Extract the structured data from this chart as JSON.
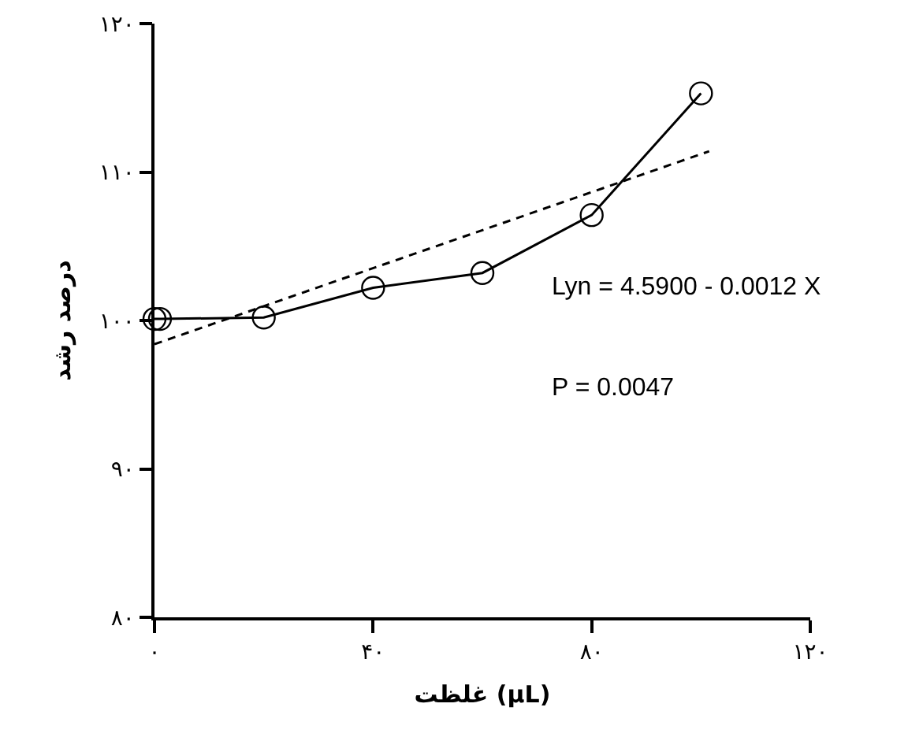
{
  "chart_data": {
    "type": "line",
    "xlabel": "غلظت (µL)",
    "ylabel": "درصد رشد",
    "xlim": [
      0,
      120
    ],
    "xticks": [
      {
        "value": 0,
        "label": "۰"
      },
      {
        "value": 40,
        "label": "۴۰"
      },
      {
        "value": 80,
        "label": "۸۰"
      },
      {
        "value": 120,
        "label": "۱۲۰"
      }
    ],
    "ylim": [
      80,
      120
    ],
    "yticks": [
      {
        "value": 80,
        "label": "۸۰"
      },
      {
        "value": 90,
        "label": "۹۰"
      },
      {
        "value": 100,
        "label": "۱۰۰"
      },
      {
        "value": 110,
        "label": "۱۱۰"
      },
      {
        "value": 120,
        "label": "۱۲۰"
      }
    ],
    "grid": false,
    "series": [
      {
        "color": "#000000",
        "marker": "circle",
        "line_style": "solid",
        "x": [
          0,
          1,
          20,
          40,
          60,
          80,
          100
        ],
        "values": [
          100.1,
          100.1,
          100.2,
          102.2,
          103.2,
          107.1,
          115.3
        ]
      },
      {
        "type": "line",
        "color": "#000000",
        "marker": "none",
        "line_style": "dashed",
        "x": [
          0,
          101.5
        ],
        "values": [
          98.4,
          111.4
        ]
      }
    ],
    "annotations": [
      "Lyn = 4.5900 - 0.0012 X",
      "P = 0.0047"
    ]
  }
}
